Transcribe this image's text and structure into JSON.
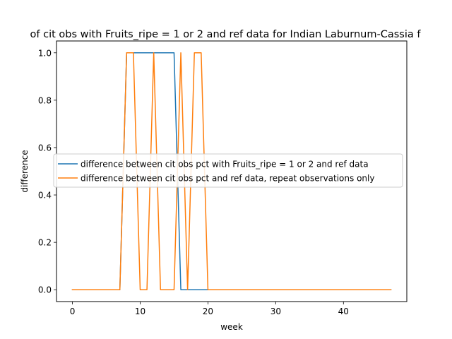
{
  "chart_data": {
    "type": "line",
    "title": "of cit obs with Fruits_ripe = 1 or 2 and ref data for Indian Laburnum-Cassia f",
    "xlabel": "week",
    "ylabel": "difference",
    "xlim": [
      -2.35,
      49.35
    ],
    "ylim": [
      -0.05,
      1.05
    ],
    "xticks": [
      0,
      10,
      20,
      30,
      40
    ],
    "yticks": [
      0.0,
      0.2,
      0.4,
      0.6,
      0.8,
      1.0
    ],
    "ytick_labels": [
      "0.0",
      "0.2",
      "0.4",
      "0.6",
      "0.8",
      "1.0"
    ],
    "grid": false,
    "legend_position": "center-right",
    "series": [
      {
        "name": "difference between cit obs pct with Fruits_ripe = 1 or 2 and ref data",
        "color": "#1f77b4",
        "x": [
          0,
          1,
          2,
          3,
          4,
          5,
          6,
          7,
          8,
          9,
          10,
          11,
          12,
          13,
          14,
          15,
          16,
          17,
          18,
          19,
          20,
          21,
          22,
          23,
          24,
          25,
          26,
          27,
          28,
          29,
          30,
          31,
          32,
          33,
          34,
          35,
          36,
          37,
          38,
          39,
          40,
          41,
          42,
          43,
          44,
          45,
          46,
          47
        ],
        "y": [
          0,
          0,
          0,
          0,
          0,
          0,
          0,
          0,
          1,
          1,
          1,
          1,
          1,
          1,
          1,
          1,
          0,
          0,
          0,
          0,
          0,
          0,
          0,
          0,
          0,
          0,
          0,
          0,
          0,
          0,
          0,
          0,
          0,
          0,
          0,
          0,
          0,
          0,
          0,
          0,
          0,
          0,
          0,
          0,
          0,
          0,
          0,
          0
        ]
      },
      {
        "name": "difference between cit obs pct and ref data, repeat observations only",
        "color": "#ff7f0e",
        "x": [
          0,
          1,
          2,
          3,
          4,
          5,
          6,
          7,
          8,
          9,
          10,
          11,
          12,
          13,
          14,
          15,
          16,
          17,
          18,
          19,
          20,
          21,
          22,
          23,
          24,
          25,
          26,
          27,
          28,
          29,
          30,
          31,
          32,
          33,
          34,
          35,
          36,
          37,
          38,
          39,
          40,
          41,
          42,
          43,
          44,
          45,
          46,
          47
        ],
        "y": [
          0,
          0,
          0,
          0,
          0,
          0,
          0,
          0,
          1,
          1,
          0,
          0,
          1,
          0,
          0,
          0,
          1,
          0,
          1,
          1,
          0,
          0,
          0,
          0,
          0,
          0,
          0,
          0,
          0,
          0,
          0,
          0,
          0,
          0,
          0,
          0,
          0,
          0,
          0,
          0,
          0,
          0,
          0,
          0,
          0,
          0,
          0,
          0
        ]
      }
    ]
  }
}
